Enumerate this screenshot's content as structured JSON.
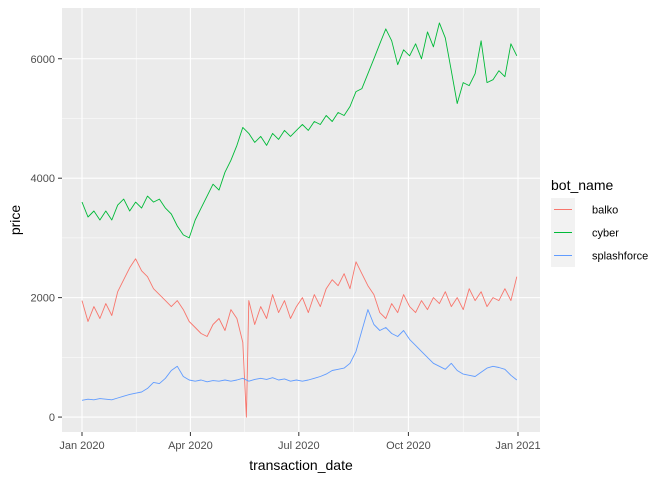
{
  "chart_data": {
    "type": "line",
    "title": "",
    "xlabel": "transaction_date",
    "ylabel": "price",
    "x_range": [
      "2020-01-01",
      "2020-12-31"
    ],
    "ylim": [
      -250,
      6850
    ],
    "x_ticks": [
      {
        "date": "2020-01-01",
        "label": "Jan 2020"
      },
      {
        "date": "2020-04-01",
        "label": "Apr 2020"
      },
      {
        "date": "2020-07-01",
        "label": "Jul 2020"
      },
      {
        "date": "2020-10-01",
        "label": "Oct 2020"
      },
      {
        "date": "2021-01-01",
        "label": "Jan 2021"
      }
    ],
    "y_ticks": [
      0,
      2000,
      4000,
      6000
    ],
    "grid": true,
    "legend": {
      "title": "bot_name",
      "position": "right"
    },
    "series": [
      {
        "name": "balko",
        "color": "#F8766D",
        "points": [
          [
            "2020-01-01",
            1950
          ],
          [
            "2020-01-06",
            1600
          ],
          [
            "2020-01-11",
            1850
          ],
          [
            "2020-01-16",
            1650
          ],
          [
            "2020-01-21",
            1900
          ],
          [
            "2020-01-26",
            1700
          ],
          [
            "2020-01-31",
            2100
          ],
          [
            "2020-02-05",
            2300
          ],
          [
            "2020-02-10",
            2500
          ],
          [
            "2020-02-15",
            2650
          ],
          [
            "2020-02-20",
            2450
          ],
          [
            "2020-02-25",
            2350
          ],
          [
            "2020-03-01",
            2150
          ],
          [
            "2020-03-06",
            2050
          ],
          [
            "2020-03-11",
            1950
          ],
          [
            "2020-03-16",
            1850
          ],
          [
            "2020-03-21",
            1950
          ],
          [
            "2020-03-26",
            1800
          ],
          [
            "2020-03-31",
            1600
          ],
          [
            "2020-04-05",
            1500
          ],
          [
            "2020-04-10",
            1400
          ],
          [
            "2020-04-15",
            1350
          ],
          [
            "2020-04-20",
            1550
          ],
          [
            "2020-04-25",
            1650
          ],
          [
            "2020-04-30",
            1450
          ],
          [
            "2020-05-05",
            1800
          ],
          [
            "2020-05-10",
            1650
          ],
          [
            "2020-05-15",
            1250
          ],
          [
            "2020-05-18",
            0
          ],
          [
            "2020-05-20",
            1950
          ],
          [
            "2020-05-25",
            1550
          ],
          [
            "2020-05-30",
            1850
          ],
          [
            "2020-06-04",
            1650
          ],
          [
            "2020-06-09",
            2050
          ],
          [
            "2020-06-14",
            1750
          ],
          [
            "2020-06-19",
            1950
          ],
          [
            "2020-06-24",
            1650
          ],
          [
            "2020-06-29",
            1850
          ],
          [
            "2020-07-04",
            2000
          ],
          [
            "2020-07-09",
            1750
          ],
          [
            "2020-07-14",
            2050
          ],
          [
            "2020-07-19",
            1850
          ],
          [
            "2020-07-24",
            2150
          ],
          [
            "2020-07-29",
            2300
          ],
          [
            "2020-08-03",
            2200
          ],
          [
            "2020-08-08",
            2400
          ],
          [
            "2020-08-13",
            2150
          ],
          [
            "2020-08-18",
            2600
          ],
          [
            "2020-08-23",
            2400
          ],
          [
            "2020-08-28",
            2200
          ],
          [
            "2020-09-02",
            2050
          ],
          [
            "2020-09-07",
            1750
          ],
          [
            "2020-09-12",
            1650
          ],
          [
            "2020-09-17",
            1900
          ],
          [
            "2020-09-22",
            1750
          ],
          [
            "2020-09-27",
            2050
          ],
          [
            "2020-10-02",
            1850
          ],
          [
            "2020-10-07",
            1750
          ],
          [
            "2020-10-12",
            1950
          ],
          [
            "2020-10-17",
            1800
          ],
          [
            "2020-10-22",
            2000
          ],
          [
            "2020-10-27",
            1900
          ],
          [
            "2020-11-01",
            2100
          ],
          [
            "2020-11-06",
            1850
          ],
          [
            "2020-11-11",
            2000
          ],
          [
            "2020-11-16",
            1800
          ],
          [
            "2020-11-21",
            2150
          ],
          [
            "2020-11-26",
            1950
          ],
          [
            "2020-12-01",
            2100
          ],
          [
            "2020-12-06",
            1850
          ],
          [
            "2020-12-11",
            2000
          ],
          [
            "2020-12-16",
            1950
          ],
          [
            "2020-12-21",
            2150
          ],
          [
            "2020-12-26",
            1950
          ],
          [
            "2020-12-31",
            2350
          ]
        ]
      },
      {
        "name": "cyber",
        "color": "#00BA38",
        "points": [
          [
            "2020-01-01",
            3600
          ],
          [
            "2020-01-06",
            3350
          ],
          [
            "2020-01-11",
            3450
          ],
          [
            "2020-01-16",
            3300
          ],
          [
            "2020-01-21",
            3450
          ],
          [
            "2020-01-26",
            3300
          ],
          [
            "2020-01-31",
            3550
          ],
          [
            "2020-02-05",
            3650
          ],
          [
            "2020-02-10",
            3450
          ],
          [
            "2020-02-15",
            3600
          ],
          [
            "2020-02-20",
            3500
          ],
          [
            "2020-02-25",
            3700
          ],
          [
            "2020-03-01",
            3600
          ],
          [
            "2020-03-06",
            3650
          ],
          [
            "2020-03-11",
            3500
          ],
          [
            "2020-03-16",
            3400
          ],
          [
            "2020-03-21",
            3200
          ],
          [
            "2020-03-26",
            3050
          ],
          [
            "2020-03-31",
            3000
          ],
          [
            "2020-04-05",
            3300
          ],
          [
            "2020-04-10",
            3500
          ],
          [
            "2020-04-15",
            3700
          ],
          [
            "2020-04-20",
            3900
          ],
          [
            "2020-04-25",
            3800
          ],
          [
            "2020-04-30",
            4100
          ],
          [
            "2020-05-05",
            4300
          ],
          [
            "2020-05-10",
            4550
          ],
          [
            "2020-05-15",
            4850
          ],
          [
            "2020-05-20",
            4750
          ],
          [
            "2020-05-25",
            4600
          ],
          [
            "2020-05-30",
            4700
          ],
          [
            "2020-06-04",
            4550
          ],
          [
            "2020-06-09",
            4750
          ],
          [
            "2020-06-14",
            4650
          ],
          [
            "2020-06-19",
            4800
          ],
          [
            "2020-06-24",
            4700
          ],
          [
            "2020-06-29",
            4800
          ],
          [
            "2020-07-04",
            4900
          ],
          [
            "2020-07-09",
            4800
          ],
          [
            "2020-07-14",
            4950
          ],
          [
            "2020-07-19",
            4900
          ],
          [
            "2020-07-24",
            5050
          ],
          [
            "2020-07-29",
            4950
          ],
          [
            "2020-08-03",
            5100
          ],
          [
            "2020-08-08",
            5050
          ],
          [
            "2020-08-13",
            5200
          ],
          [
            "2020-08-18",
            5450
          ],
          [
            "2020-08-23",
            5500
          ],
          [
            "2020-08-28",
            5750
          ],
          [
            "2020-09-02",
            6000
          ],
          [
            "2020-09-07",
            6250
          ],
          [
            "2020-09-12",
            6500
          ],
          [
            "2020-09-17",
            6300
          ],
          [
            "2020-09-22",
            5900
          ],
          [
            "2020-09-27",
            6150
          ],
          [
            "2020-10-02",
            6050
          ],
          [
            "2020-10-07",
            6250
          ],
          [
            "2020-10-12",
            6000
          ],
          [
            "2020-10-17",
            6450
          ],
          [
            "2020-10-22",
            6200
          ],
          [
            "2020-10-27",
            6600
          ],
          [
            "2020-11-01",
            6350
          ],
          [
            "2020-11-06",
            5800
          ],
          [
            "2020-11-11",
            5250
          ],
          [
            "2020-11-16",
            5600
          ],
          [
            "2020-11-21",
            5550
          ],
          [
            "2020-11-26",
            5750
          ],
          [
            "2020-12-01",
            6300
          ],
          [
            "2020-12-06",
            5600
          ],
          [
            "2020-12-11",
            5650
          ],
          [
            "2020-12-16",
            5800
          ],
          [
            "2020-12-21",
            5700
          ],
          [
            "2020-12-26",
            6250
          ],
          [
            "2020-12-31",
            6050
          ]
        ]
      },
      {
        "name": "splashforce",
        "color": "#619CFF",
        "points": [
          [
            "2020-01-01",
            280
          ],
          [
            "2020-01-06",
            300
          ],
          [
            "2020-01-11",
            290
          ],
          [
            "2020-01-16",
            310
          ],
          [
            "2020-01-21",
            300
          ],
          [
            "2020-01-26",
            290
          ],
          [
            "2020-01-31",
            320
          ],
          [
            "2020-02-05",
            350
          ],
          [
            "2020-02-10",
            380
          ],
          [
            "2020-02-15",
            400
          ],
          [
            "2020-02-20",
            420
          ],
          [
            "2020-02-25",
            480
          ],
          [
            "2020-03-01",
            580
          ],
          [
            "2020-03-06",
            560
          ],
          [
            "2020-03-11",
            650
          ],
          [
            "2020-03-16",
            780
          ],
          [
            "2020-03-21",
            850
          ],
          [
            "2020-03-26",
            680
          ],
          [
            "2020-03-31",
            620
          ],
          [
            "2020-04-05",
            600
          ],
          [
            "2020-04-10",
            620
          ],
          [
            "2020-04-15",
            590
          ],
          [
            "2020-04-20",
            610
          ],
          [
            "2020-04-25",
            600
          ],
          [
            "2020-04-30",
            620
          ],
          [
            "2020-05-05",
            600
          ],
          [
            "2020-05-10",
            620
          ],
          [
            "2020-05-15",
            650
          ],
          [
            "2020-05-20",
            600
          ],
          [
            "2020-05-25",
            630
          ],
          [
            "2020-05-30",
            650
          ],
          [
            "2020-06-04",
            630
          ],
          [
            "2020-06-09",
            660
          ],
          [
            "2020-06-14",
            620
          ],
          [
            "2020-06-19",
            640
          ],
          [
            "2020-06-24",
            600
          ],
          [
            "2020-06-29",
            620
          ],
          [
            "2020-07-04",
            600
          ],
          [
            "2020-07-09",
            620
          ],
          [
            "2020-07-14",
            650
          ],
          [
            "2020-07-19",
            680
          ],
          [
            "2020-07-24",
            720
          ],
          [
            "2020-07-29",
            780
          ],
          [
            "2020-08-03",
            800
          ],
          [
            "2020-08-08",
            820
          ],
          [
            "2020-08-13",
            900
          ],
          [
            "2020-08-18",
            1100
          ],
          [
            "2020-08-23",
            1450
          ],
          [
            "2020-08-28",
            1800
          ],
          [
            "2020-09-02",
            1550
          ],
          [
            "2020-09-07",
            1450
          ],
          [
            "2020-09-12",
            1500
          ],
          [
            "2020-09-17",
            1400
          ],
          [
            "2020-09-22",
            1350
          ],
          [
            "2020-09-27",
            1450
          ],
          [
            "2020-10-02",
            1300
          ],
          [
            "2020-10-07",
            1200
          ],
          [
            "2020-10-12",
            1100
          ],
          [
            "2020-10-17",
            1000
          ],
          [
            "2020-10-22",
            900
          ],
          [
            "2020-10-27",
            850
          ],
          [
            "2020-11-01",
            800
          ],
          [
            "2020-11-06",
            900
          ],
          [
            "2020-11-11",
            780
          ],
          [
            "2020-11-16",
            720
          ],
          [
            "2020-11-21",
            700
          ],
          [
            "2020-11-26",
            680
          ],
          [
            "2020-12-01",
            750
          ],
          [
            "2020-12-06",
            820
          ],
          [
            "2020-12-11",
            850
          ],
          [
            "2020-12-16",
            830
          ],
          [
            "2020-12-21",
            800
          ],
          [
            "2020-12-26",
            700
          ],
          [
            "2020-12-31",
            620
          ]
        ]
      }
    ]
  }
}
